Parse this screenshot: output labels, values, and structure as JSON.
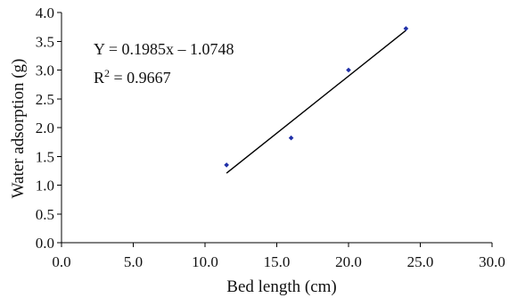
{
  "chart_data": {
    "type": "scatter",
    "title": "",
    "xlabel": "Bed length (cm)",
    "ylabel": "Water adsorption (g)",
    "xlim": [
      0,
      30
    ],
    "ylim": [
      0,
      4
    ],
    "x_ticks": [
      "0.0",
      "5.0",
      "10.0",
      "15.0",
      "20.0",
      "25.0",
      "30.0"
    ],
    "y_ticks": [
      "0.0",
      "0.5",
      "1.0",
      "1.5",
      "2.0",
      "2.5",
      "3.0",
      "3.5",
      "4.0"
    ],
    "grid": false,
    "legend": "none",
    "series": [
      {
        "x": [
          11.5,
          16.0,
          20.0,
          24.0
        ],
        "y": [
          1.35,
          1.82,
          3.0,
          3.72
        ],
        "marker": "diamond",
        "color": "#1f2fa8"
      }
    ],
    "trendline": {
      "slope": 0.1985,
      "intercept": -1.0748,
      "x_range": [
        11.5,
        24.0
      ],
      "color": "#000000"
    },
    "annotations": {
      "equation": "Y = 0.1985x – 1.0748",
      "r_squared_prefix": "R",
      "r_squared_exp": "2",
      "r_squared_value": " = 0.9667"
    }
  }
}
